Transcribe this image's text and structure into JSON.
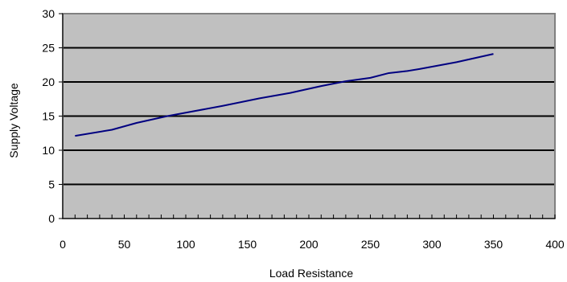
{
  "chart_data": {
    "type": "line",
    "title": "",
    "xlabel": "Load Resistance",
    "ylabel": "Supply Voltage",
    "xlim": [
      0,
      400
    ],
    "ylim": [
      0,
      30
    ],
    "x_ticks": [
      0,
      50,
      100,
      150,
      200,
      250,
      300,
      350,
      400
    ],
    "y_ticks": [
      0,
      5,
      10,
      15,
      20,
      25,
      30
    ],
    "x_tick_labels": [
      "0",
      "50",
      "100",
      "150",
      "200",
      "250",
      "300",
      "350",
      "400"
    ],
    "y_tick_labels": [
      "0",
      "5",
      "10",
      "15",
      "20",
      "25",
      "30"
    ],
    "grid": "horizontal",
    "legend": "none",
    "series": [
      {
        "color": "#000080",
        "x": [
          10,
          40,
          60,
          85,
          100,
          130,
          160,
          185,
          210,
          230,
          250,
          265,
          280,
          290,
          305,
          320,
          335,
          350
        ],
        "y": [
          12.1,
          13.0,
          14.0,
          15.0,
          15.5,
          16.5,
          17.6,
          18.4,
          19.4,
          20.1,
          20.6,
          21.3,
          21.6,
          21.9,
          22.4,
          22.9,
          23.5,
          24.1
        ]
      }
    ],
    "colors": {
      "plot_background": "#c0c0c0",
      "gridline": "#000000",
      "axis": "#808080"
    }
  }
}
